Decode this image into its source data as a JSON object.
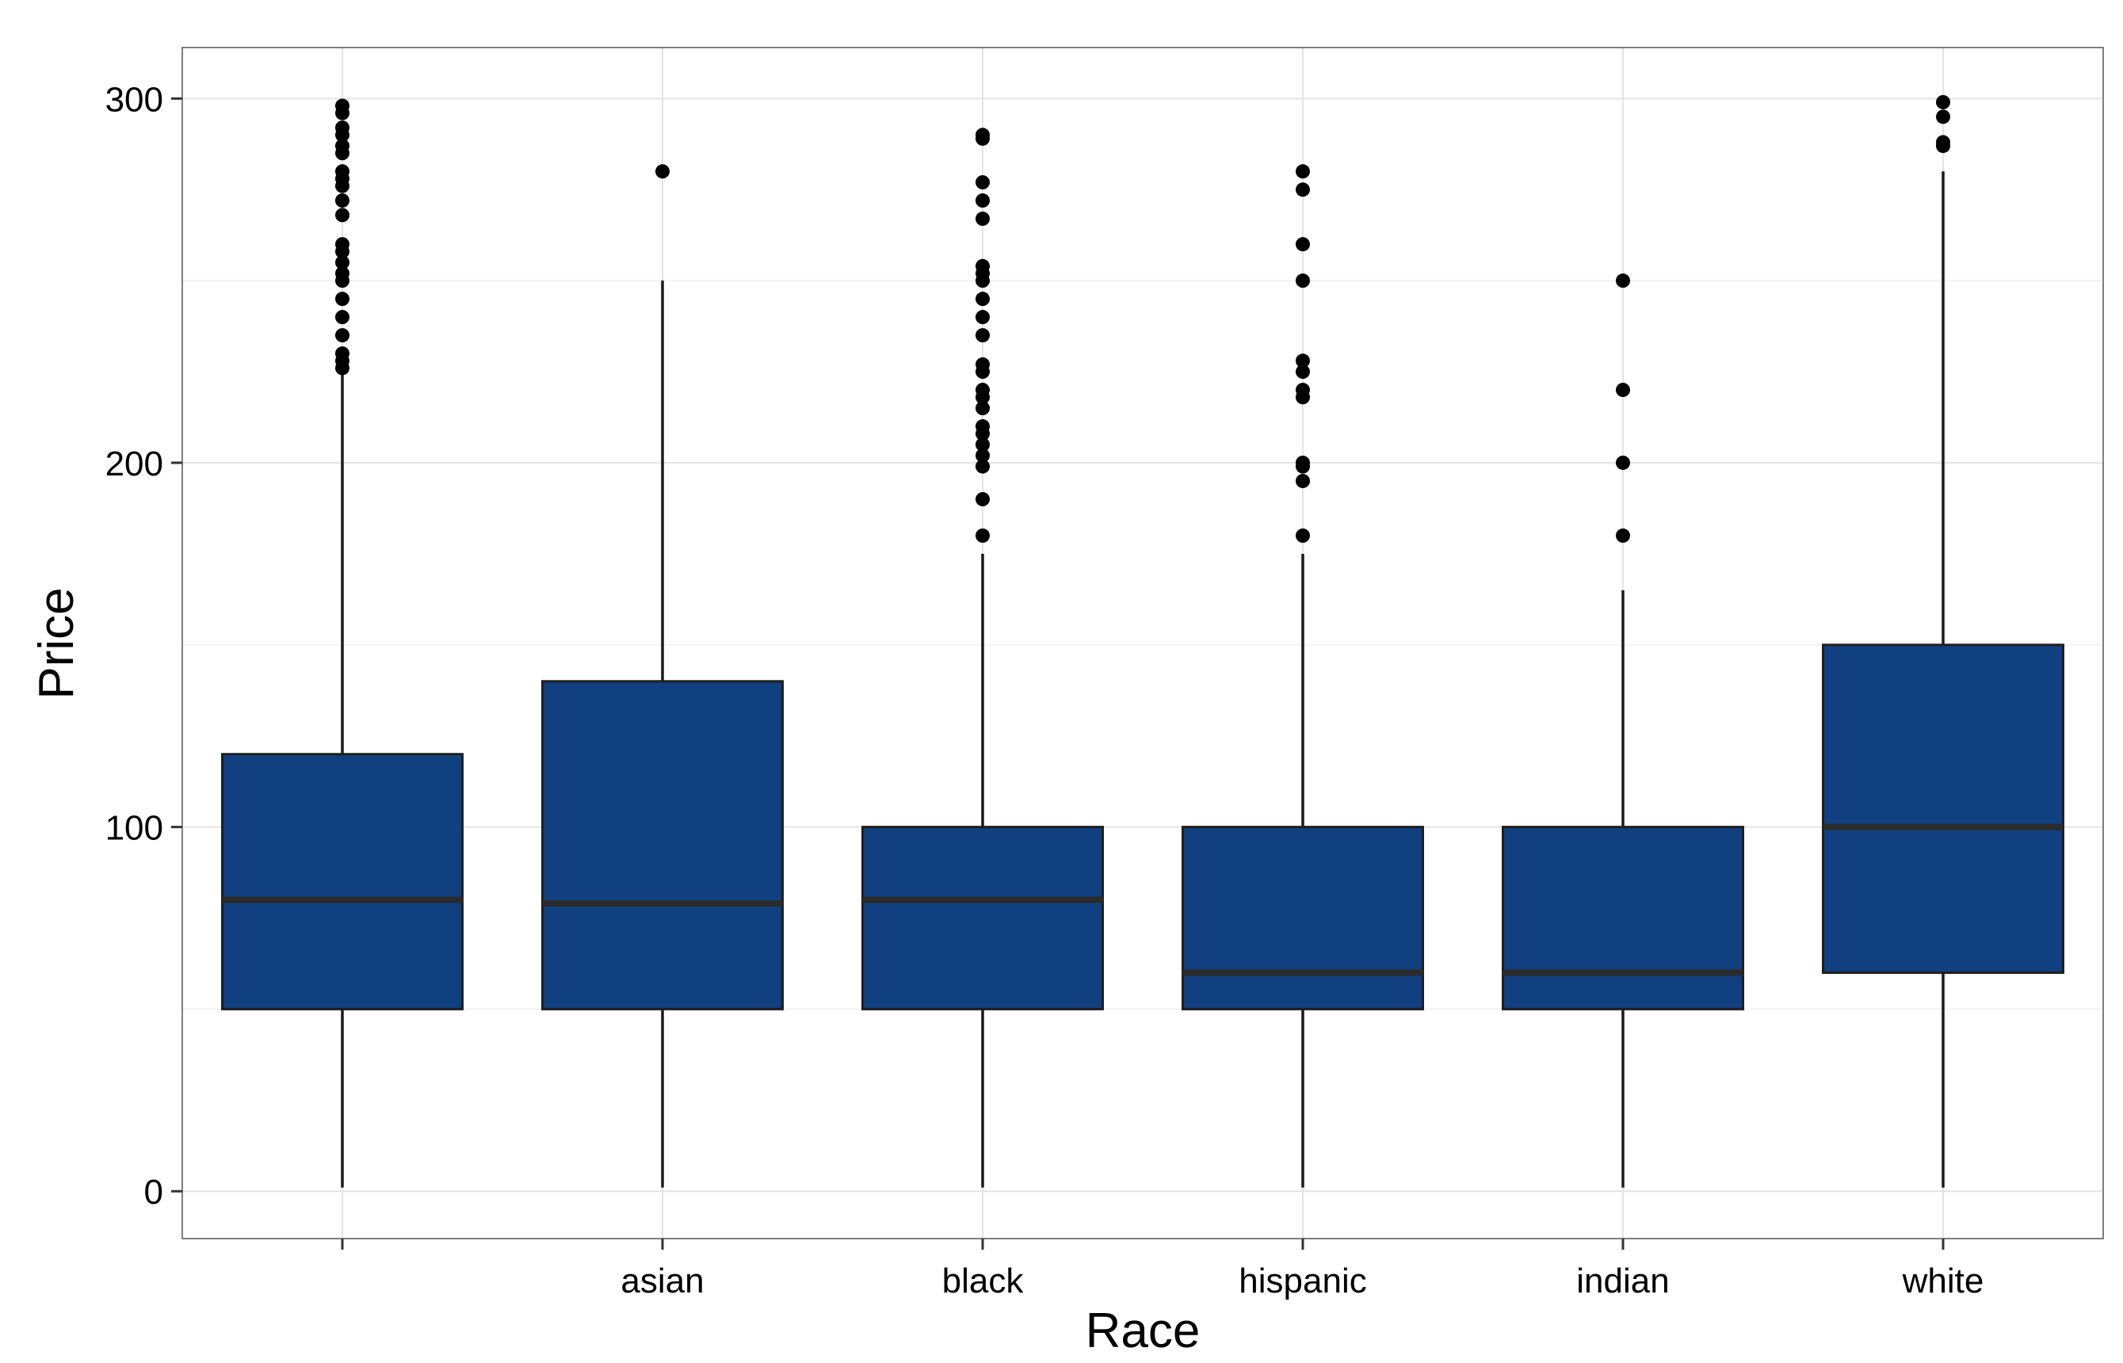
{
  "chart_data": {
    "type": "box",
    "xlabel": "Race",
    "ylabel": "Price",
    "ylim": [
      -13,
      314
    ],
    "yticks": [
      0,
      100,
      200,
      300
    ],
    "grid": true,
    "legend": "none",
    "colors": {
      "box_fill": "#10407F",
      "box_stroke": "#1F1F1F",
      "median": "#2B2B2B",
      "whisker": "#1A1A1A",
      "outlier": "#000000",
      "grid_major": "#E3E3E3",
      "grid_minor": "#F2F2F2",
      "panel_border": "#7F7F7F"
    },
    "categories": [
      "",
      "asian",
      "black",
      "hispanic",
      "indian",
      "white"
    ],
    "boxes": [
      {
        "category": "",
        "whisker_low": 1,
        "q1": 50,
        "median": 80,
        "q3": 120,
        "whisker_high": 225,
        "outliers": [
          298,
          296,
          292,
          290,
          287,
          285,
          280,
          278,
          276,
          272,
          268,
          260,
          258,
          255,
          252,
          250,
          245,
          240,
          235,
          230,
          228,
          226
        ]
      },
      {
        "category": "asian",
        "whisker_low": 1,
        "q1": 50,
        "median": 79,
        "q3": 140,
        "whisker_high": 250,
        "outliers": [
          280
        ]
      },
      {
        "category": "black",
        "whisker_low": 1,
        "q1": 50,
        "median": 80,
        "q3": 100,
        "whisker_high": 175,
        "outliers": [
          290,
          289,
          277,
          272,
          267,
          254,
          252,
          250,
          245,
          240,
          235,
          227,
          225,
          220,
          218,
          215,
          210,
          208,
          205,
          202,
          199,
          190,
          180
        ]
      },
      {
        "category": "hispanic",
        "whisker_low": 1,
        "q1": 50,
        "median": 60,
        "q3": 100,
        "whisker_high": 175,
        "outliers": [
          280,
          275,
          260,
          250,
          228,
          225,
          220,
          218,
          200,
          199,
          195,
          180
        ]
      },
      {
        "category": "indian",
        "whisker_low": 1,
        "q1": 50,
        "median": 60,
        "q3": 100,
        "whisker_high": 165,
        "outliers": [
          250,
          220,
          200,
          180
        ]
      },
      {
        "category": "white",
        "whisker_low": 1,
        "q1": 60,
        "median": 100,
        "q3": 150,
        "whisker_high": 280,
        "outliers": [
          299,
          295,
          288,
          287
        ]
      }
    ]
  }
}
